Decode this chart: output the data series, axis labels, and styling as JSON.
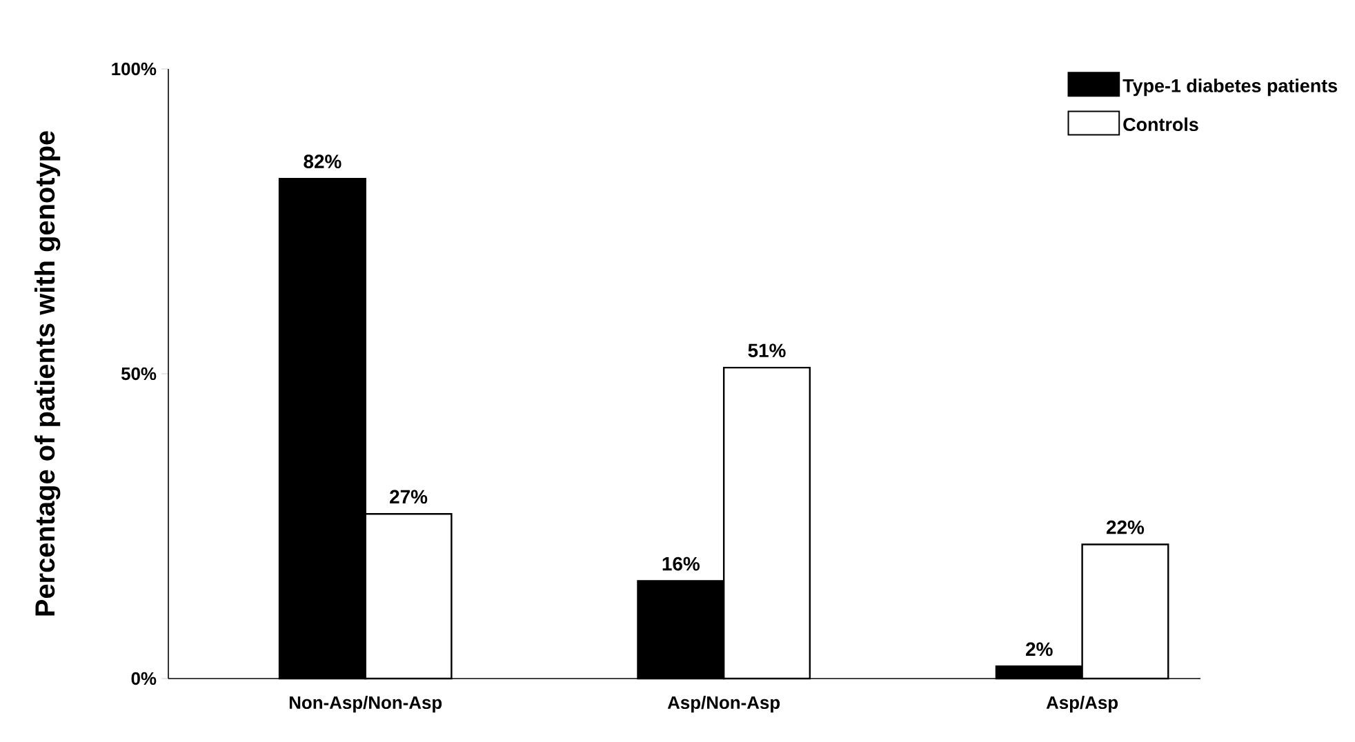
{
  "chart_data": {
    "type": "bar",
    "ylabel": "Percentage of patients with genotype",
    "categories": [
      "Non-Asp/Non-Asp",
      "Asp/Non-Asp",
      "Asp/Asp"
    ],
    "series": [
      {
        "name": "Type-1 diabetes patients",
        "color": "#000000",
        "values": [
          82,
          16,
          2
        ],
        "value_labels": [
          "82%",
          "16%",
          "2%"
        ]
      },
      {
        "name": "Controls",
        "color": "#ffffff",
        "values": [
          27,
          51,
          22
        ],
        "value_labels": [
          "27%",
          "51%",
          "22%"
        ]
      }
    ],
    "ylim": [
      0,
      100
    ],
    "yticks": [
      {
        "value": 0,
        "label": "0%"
      },
      {
        "value": 50,
        "label": "50%"
      },
      {
        "value": 100,
        "label": "100%"
      }
    ],
    "legend": "top right",
    "grid": false
  }
}
